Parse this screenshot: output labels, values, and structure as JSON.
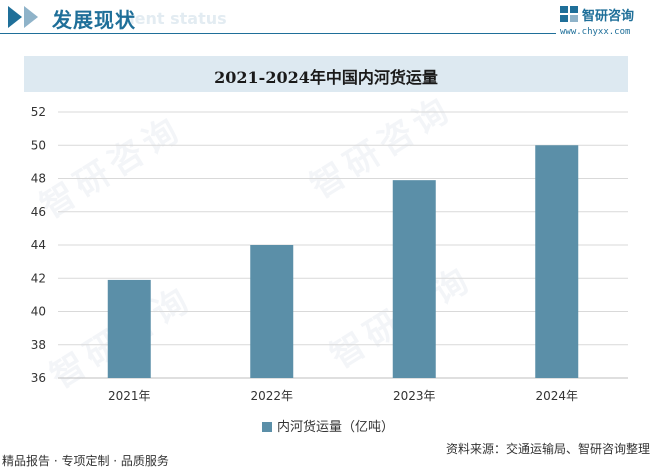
{
  "header": {
    "title": "发展现状",
    "subtitle": "ment status",
    "brand_name": "智研咨询",
    "brand_url": "www.chyxx.com",
    "accent": "#1f6f99"
  },
  "watermark": "智研咨询",
  "chart_data": {
    "type": "bar",
    "title": "2021-2024年中国内河货运量",
    "categories": [
      "2021年",
      "2022年",
      "2023年",
      "2024年"
    ],
    "series": [
      {
        "name": "内河货运量（亿吨）",
        "values": [
          41.9,
          44.0,
          47.9,
          50.0
        ],
        "color": "#5b8fa8"
      }
    ],
    "xlabel": "",
    "ylabel": "",
    "ylim": [
      36,
      52
    ],
    "yticks": [
      "36",
      "38",
      "40",
      "42",
      "44",
      "46",
      "48",
      "50",
      "52"
    ],
    "grid": true,
    "legend_position": "bottom"
  },
  "footer": {
    "left": "精品报告 · 专项定制 · 品质服务",
    "source": "资料来源：交通运输局、智研咨询整理"
  }
}
